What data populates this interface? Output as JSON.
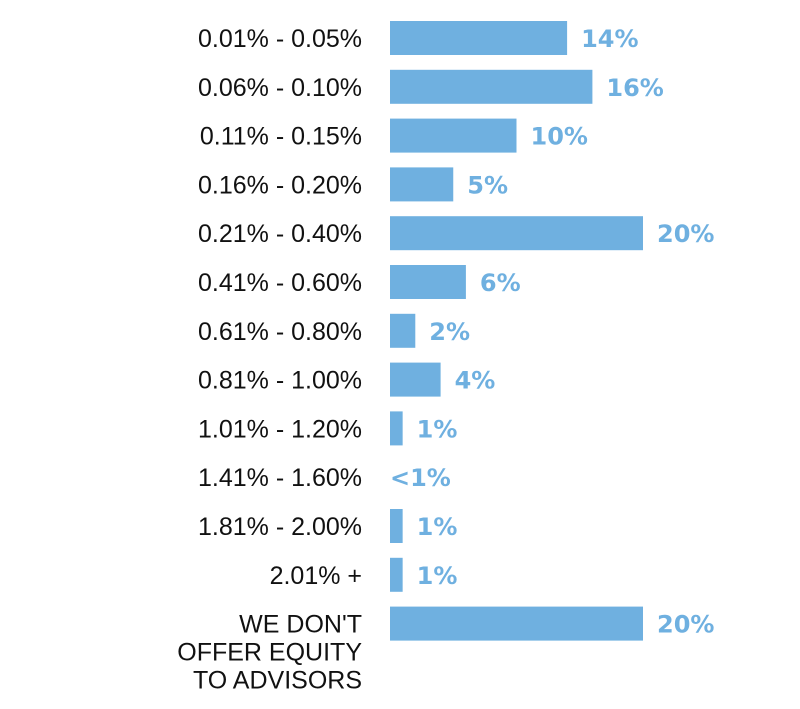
{
  "chart_data": {
    "type": "bar",
    "orientation": "horizontal",
    "categories": [
      "0.01% - 0.05%",
      "0.06% - 0.10%",
      "0.11% - 0.15%",
      "0.16% - 0.20%",
      "0.21% - 0.40%",
      "0.41% - 0.60%",
      "0.61% - 0.80%",
      "0.81% - 1.00%",
      "1.01% - 1.20%",
      "1.41% - 1.60%",
      "1.81% - 2.00%",
      "2.01% +",
      "WE DON'T OFFER EQUITY TO ADVISORS"
    ],
    "values": [
      14,
      16,
      10,
      5,
      20,
      6,
      2,
      4,
      1,
      0,
      1,
      1,
      20
    ],
    "value_labels": [
      "14%",
      "16%",
      "10%",
      "5%",
      "20%",
      "6%",
      "2%",
      "4%",
      "1%",
      "<1%",
      "1%",
      "1%",
      "20%"
    ],
    "title": "",
    "xlabel": "",
    "ylabel": "",
    "xlim": [
      0,
      20
    ],
    "grid": false,
    "legend": "none",
    "bar_color": "#6fb0e0",
    "value_label_color": "#6fb0e0",
    "category_label_color": "#111111"
  }
}
